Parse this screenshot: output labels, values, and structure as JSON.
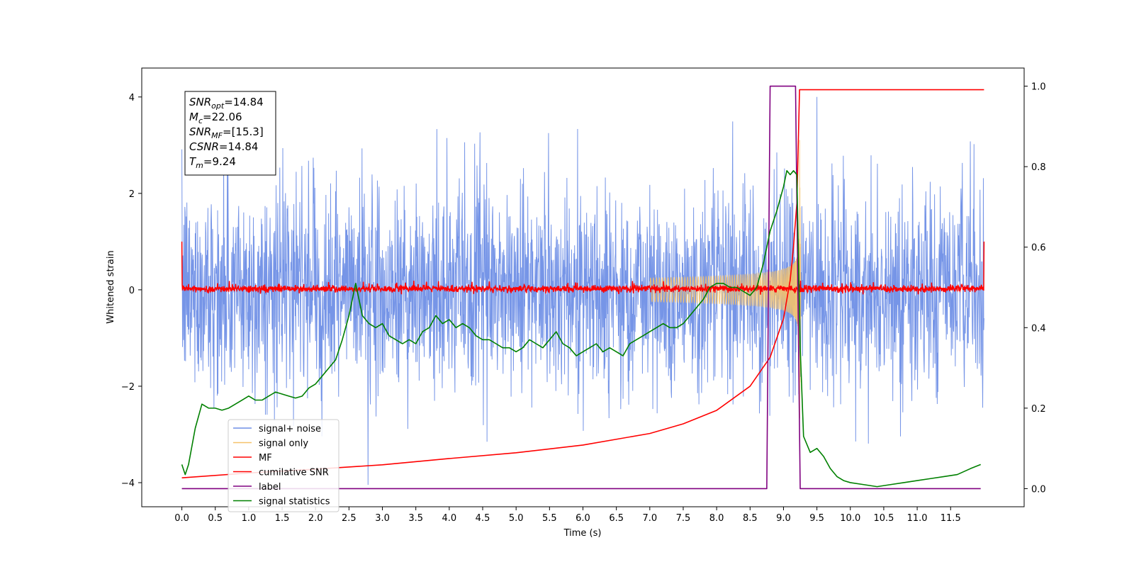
{
  "chart_data": {
    "type": "line",
    "xlabel": "Time (s)",
    "ylabel": "Whitened strain",
    "xlim": [
      -0.6,
      12.6
    ],
    "ylim": [
      -4.5,
      4.6
    ],
    "y2lim": [
      -0.045,
      1.045
    ],
    "x_ticks": [
      "0.0",
      "0.5",
      "1.0",
      "1.5",
      "2.0",
      "2.5",
      "3.0",
      "3.5",
      "4.0",
      "4.5",
      "5.0",
      "5.5",
      "6.0",
      "6.5",
      "7.0",
      "7.5",
      "8.0",
      "8.5",
      "9.0",
      "9.5",
      "10.0",
      "10.5",
      "11.0",
      "11.5"
    ],
    "y_ticks": [
      "-4",
      "-2",
      "0",
      "2",
      "4"
    ],
    "y2_ticks": [
      "0.0",
      "0.2",
      "0.4",
      "0.6",
      "0.8",
      "1.0"
    ],
    "annotation": {
      "lines": [
        {
          "sym": "SNR",
          "sub": "opt",
          "val": "=14.84"
        },
        {
          "sym": "M",
          "sub": "c",
          "val": "=22.06"
        },
        {
          "sym": "SNR",
          "sub": "MF",
          "val": "=[15.3]"
        },
        {
          "sym": "CSNR",
          "sub": "",
          "val": "=14.84"
        },
        {
          "sym": "T",
          "sub": "m",
          "val": "=9.24"
        }
      ]
    },
    "legend_position": "lower-left",
    "series": [
      {
        "name": "signal+ noise",
        "color": "#6f8fe6",
        "axis": "left",
        "range": [
          -4.1,
          4.0
        ],
        "x_range": [
          0.0,
          12.0
        ]
      },
      {
        "name": "signal only",
        "color": "#f5c26b",
        "axis": "left",
        "merger_time": 9.24,
        "peak_amplitude": 3.3
      },
      {
        "name": "MF",
        "color": "#ff0000",
        "axis": "left",
        "baseline_noise": 0.08,
        "edge_value": 1.0
      },
      {
        "name": "cumilative SNR",
        "color": "#ff0000",
        "axis": "left",
        "x": [
          0.0,
          1.0,
          2.0,
          3.0,
          4.0,
          5.0,
          6.0,
          7.0,
          7.5,
          8.0,
          8.5,
          8.8,
          9.0,
          9.1,
          9.15,
          9.2,
          9.24,
          9.3,
          12.0
        ],
        "y": [
          -3.9,
          -3.8,
          -3.72,
          -3.63,
          -3.5,
          -3.38,
          -3.22,
          -2.98,
          -2.78,
          -2.5,
          -2.0,
          -1.4,
          -0.6,
          0.2,
          0.9,
          1.8,
          4.15,
          4.15,
          4.15
        ]
      },
      {
        "name": "label",
        "color": "#800080",
        "axis": "right",
        "x": [
          0.0,
          8.75,
          8.8,
          9.18,
          9.25,
          11.95
        ],
        "y": [
          0,
          0,
          1,
          1,
          0,
          0
        ]
      },
      {
        "name": "signal statistics",
        "color": "#008000",
        "axis": "right",
        "x": [
          0.0,
          0.05,
          0.1,
          0.2,
          0.3,
          0.4,
          0.5,
          0.6,
          0.7,
          0.8,
          0.9,
          1.0,
          1.1,
          1.2,
          1.3,
          1.4,
          1.5,
          1.6,
          1.7,
          1.8,
          1.9,
          2.0,
          2.1,
          2.2,
          2.3,
          2.4,
          2.5,
          2.6,
          2.7,
          2.8,
          2.9,
          3.0,
          3.1,
          3.2,
          3.3,
          3.4,
          3.5,
          3.6,
          3.7,
          3.8,
          3.9,
          4.0,
          4.1,
          4.2,
          4.3,
          4.4,
          4.5,
          4.6,
          4.7,
          4.8,
          4.9,
          5.0,
          5.1,
          5.2,
          5.3,
          5.4,
          5.5,
          5.6,
          5.7,
          5.8,
          5.9,
          6.0,
          6.1,
          6.2,
          6.3,
          6.4,
          6.5,
          6.6,
          6.7,
          6.8,
          6.9,
          7.0,
          7.1,
          7.2,
          7.3,
          7.4,
          7.5,
          7.6,
          7.7,
          7.8,
          7.9,
          8.0,
          8.1,
          8.2,
          8.3,
          8.4,
          8.5,
          8.6,
          8.7,
          8.8,
          8.9,
          9.0,
          9.05,
          9.1,
          9.15,
          9.2,
          9.25,
          9.3,
          9.4,
          9.5,
          9.6,
          9.7,
          9.8,
          9.9,
          10.0,
          10.2,
          10.4,
          10.6,
          10.8,
          11.0,
          11.2,
          11.4,
          11.6,
          11.8,
          11.95
        ],
        "y": [
          0.06,
          0.035,
          0.06,
          0.15,
          0.21,
          0.2,
          0.2,
          0.195,
          0.2,
          0.21,
          0.22,
          0.23,
          0.22,
          0.22,
          0.23,
          0.24,
          0.235,
          0.23,
          0.225,
          0.23,
          0.25,
          0.26,
          0.28,
          0.3,
          0.32,
          0.37,
          0.43,
          0.51,
          0.43,
          0.41,
          0.4,
          0.41,
          0.38,
          0.37,
          0.36,
          0.37,
          0.36,
          0.39,
          0.4,
          0.43,
          0.41,
          0.42,
          0.4,
          0.41,
          0.4,
          0.38,
          0.37,
          0.37,
          0.36,
          0.35,
          0.35,
          0.34,
          0.35,
          0.37,
          0.36,
          0.35,
          0.37,
          0.39,
          0.36,
          0.35,
          0.33,
          0.34,
          0.35,
          0.36,
          0.34,
          0.35,
          0.34,
          0.33,
          0.36,
          0.37,
          0.38,
          0.39,
          0.4,
          0.41,
          0.4,
          0.4,
          0.41,
          0.43,
          0.45,
          0.47,
          0.5,
          0.51,
          0.51,
          0.5,
          0.5,
          0.49,
          0.48,
          0.5,
          0.56,
          0.64,
          0.69,
          0.75,
          0.79,
          0.78,
          0.79,
          0.78,
          0.35,
          0.13,
          0.09,
          0.1,
          0.08,
          0.05,
          0.03,
          0.02,
          0.015,
          0.01,
          0.005,
          0.01,
          0.015,
          0.02,
          0.025,
          0.03,
          0.035,
          0.05,
          0.06
        ]
      }
    ]
  }
}
